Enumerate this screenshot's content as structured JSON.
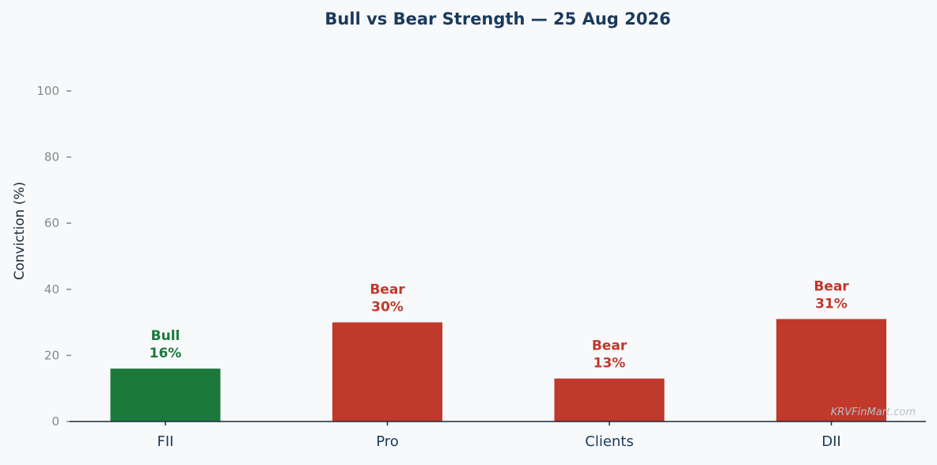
{
  "chart_data": {
    "type": "bar",
    "title": "Bull vs Bear Strength — 25 Aug 2026",
    "ylabel": "Conviction (%)",
    "xlabel": "",
    "ylim": [
      0,
      100
    ],
    "yticks": [
      0,
      20,
      40,
      60,
      80,
      100
    ],
    "grid": false,
    "categories": [
      "FII",
      "Pro",
      "Clients",
      "DII"
    ],
    "values": [
      16,
      30,
      13,
      31
    ],
    "labels": [
      "Bull",
      "Bear",
      "Bear",
      "Bear"
    ],
    "value_labels": [
      "16%",
      "30%",
      "13%",
      "31%"
    ],
    "watermark": "KRVFinMart.com",
    "colors": {
      "bull": "#1b7a3b",
      "bear": "#c0392b",
      "title": "#1a3a5c",
      "axis": "#1a2a3a",
      "tick_label": "#888888",
      "watermark": "#b8bfc6"
    }
  }
}
